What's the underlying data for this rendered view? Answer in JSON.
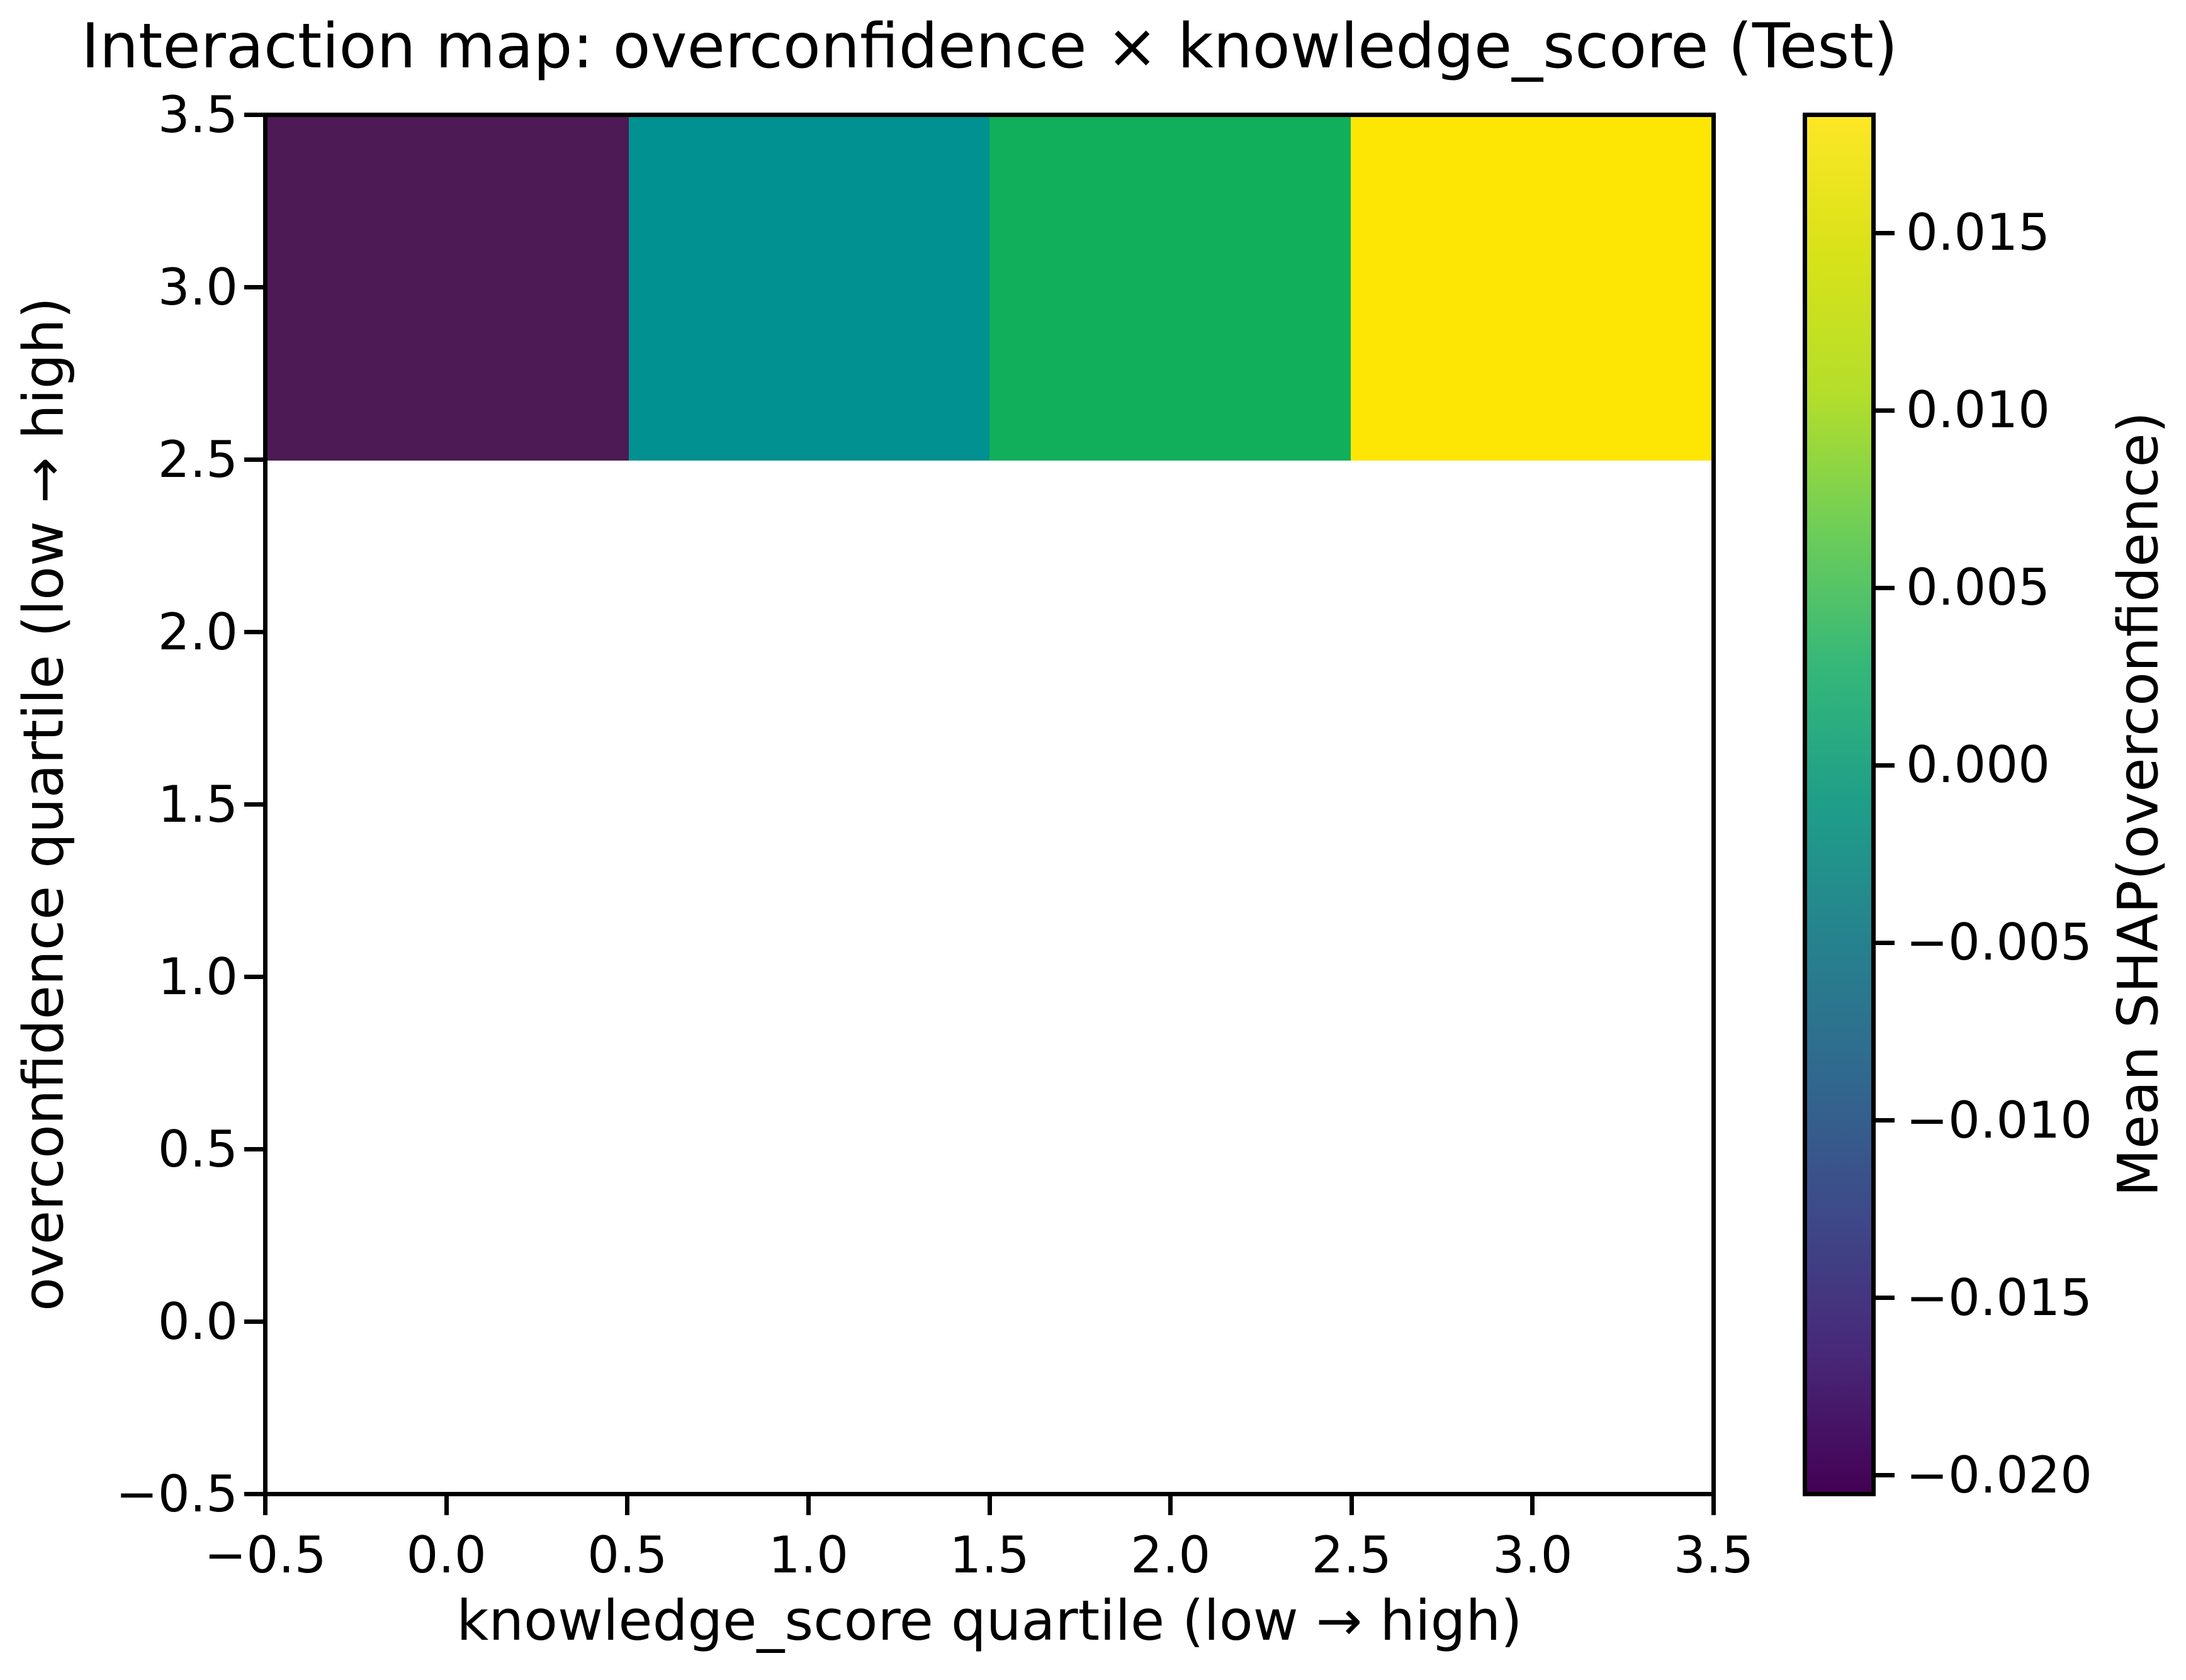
{
  "chart_data": {
    "type": "heatmap",
    "title": "Interaction map: overconfidence × knowledge_score (Test)",
    "xlabel": "knowledge_score quartile (low → high)",
    "ylabel": "overconfidence quartile (low → high)",
    "colorbar_label": "Mean SHAP(overconfidence)",
    "xlim": [
      -0.5,
      3.5
    ],
    "ylim": [
      -0.5,
      3.5
    ],
    "x_quartiles": [
      0,
      1,
      2,
      3
    ],
    "y_quartiles": [
      0,
      1,
      2,
      3
    ],
    "colormap": "viridis",
    "grid": false,
    "cells": [
      {
        "x_quartile": 0,
        "y_quartile": 3,
        "mean_shap": -0.0205,
        "color": "#4d1a55"
      },
      {
        "x_quartile": 1,
        "y_quartile": 3,
        "mean_shap": -0.002,
        "color": "#009190"
      },
      {
        "x_quartile": 2,
        "y_quartile": 3,
        "mean_shap": 0.005,
        "color": "#11af5c"
      },
      {
        "x_quartile": 3,
        "y_quartile": 3,
        "mean_shap": 0.018,
        "color": "#fde604"
      }
    ],
    "empty_cells_note": "All cells for y_quartile 0, 1 and 2 are blank (white, no data); only the top row y_quartile=3 is colored."
  },
  "axes": {
    "x_ticks": [
      "−0.5",
      "0.0",
      "0.5",
      "1.0",
      "1.5",
      "2.0",
      "2.5",
      "3.0",
      "3.5"
    ],
    "y_ticks": [
      "3.5",
      "3.0",
      "2.5",
      "2.0",
      "1.5",
      "1.0",
      "0.5",
      "0.0",
      "−0.5"
    ]
  },
  "colorbar": {
    "tick_labels": [
      "0.015",
      "0.010",
      "0.005",
      "0.000",
      "−0.005",
      "−0.010",
      "−0.015",
      "−0.020"
    ],
    "tick_values": [
      0.015,
      0.01,
      0.005,
      0.0,
      -0.005,
      -0.01,
      -0.015,
      -0.02
    ],
    "vmax": 0.01833,
    "vmin": -0.02053,
    "gradient_top_to_bottom": [
      "#fde725",
      "#d8e219",
      "#b5de2b",
      "#6ece58",
      "#35b779",
      "#1f9e89",
      "#26828e",
      "#31688e",
      "#3e4989",
      "#482878",
      "#440154"
    ]
  },
  "colors": {
    "text": "#000000",
    "spine": "#000000",
    "background": "#ffffff"
  }
}
